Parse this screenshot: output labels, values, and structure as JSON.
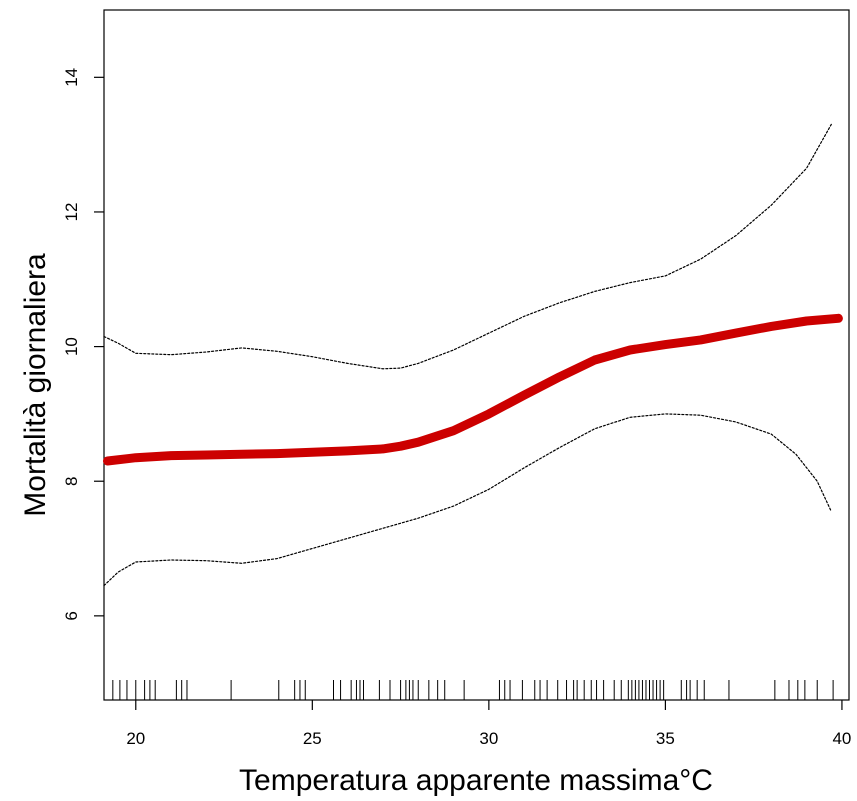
{
  "chart_data": {
    "type": "line",
    "title": "",
    "xlabel": "Temperatura apparente massima°C",
    "ylabel": "Mortalità giornaliera",
    "xlim": [
      19.1,
      40.2
    ],
    "ylim": [
      4.75,
      15.0
    ],
    "x_ticks": [
      "20",
      "25",
      "30",
      "35",
      "40"
    ],
    "y_ticks": [
      "6",
      "8",
      "10",
      "12",
      "14"
    ],
    "grid": false,
    "legend": "none",
    "colors": {
      "fit": "#cc0000",
      "band": "#000000",
      "rug": "#000000"
    },
    "series": [
      {
        "role": "fit",
        "x": [
          19.2,
          20,
          21,
          22,
          23,
          24,
          25,
          26,
          27,
          27.5,
          28,
          29,
          30,
          31,
          32,
          33,
          34,
          35,
          36,
          37,
          38,
          39,
          39.9
        ],
        "y": [
          8.3,
          8.35,
          8.38,
          8.39,
          8.4,
          8.41,
          8.43,
          8.45,
          8.48,
          8.52,
          8.58,
          8.75,
          9.0,
          9.28,
          9.55,
          9.8,
          9.95,
          10.03,
          10.1,
          10.2,
          10.3,
          10.38,
          10.42
        ]
      },
      {
        "role": "upper",
        "x": [
          19.1,
          19.5,
          20,
          21,
          22,
          23,
          24,
          25,
          26,
          27,
          27.5,
          28,
          29,
          30,
          31,
          32,
          33,
          34,
          35,
          36,
          37,
          38,
          39,
          39.7
        ],
        "y": [
          10.15,
          10.05,
          9.9,
          9.88,
          9.92,
          9.98,
          9.93,
          9.85,
          9.75,
          9.67,
          9.68,
          9.75,
          9.95,
          10.2,
          10.45,
          10.65,
          10.82,
          10.95,
          11.05,
          11.3,
          11.65,
          12.1,
          12.65,
          13.3
        ]
      },
      {
        "role": "lower",
        "x": [
          19.1,
          19.5,
          20,
          21,
          22,
          23,
          24,
          25,
          26,
          27,
          28,
          29,
          30,
          31,
          32,
          33,
          34,
          35,
          36,
          37,
          38,
          38.7,
          39.3,
          39.7
        ],
        "y": [
          6.45,
          6.65,
          6.8,
          6.83,
          6.82,
          6.78,
          6.85,
          7.0,
          7.15,
          7.3,
          7.45,
          7.63,
          7.88,
          8.2,
          8.5,
          8.78,
          8.95,
          9.0,
          8.98,
          8.88,
          8.7,
          8.4,
          8.0,
          7.55
        ]
      }
    ],
    "rug_x": [
      19.35,
      19.55,
      19.75,
      20.0,
      20.25,
      20.4,
      20.55,
      21.15,
      21.3,
      21.45,
      22.7,
      24.05,
      24.5,
      24.65,
      24.8,
      25.6,
      25.8,
      26.1,
      26.25,
      26.35,
      26.45,
      26.9,
      27.2,
      27.5,
      27.65,
      27.75,
      27.85,
      28.0,
      28.3,
      28.55,
      28.75,
      29.3,
      30.3,
      30.45,
      30.6,
      30.95,
      31.3,
      31.45,
      31.65,
      31.95,
      32.2,
      32.4,
      32.5,
      32.7,
      32.9,
      33.05,
      33.25,
      33.55,
      33.75,
      33.95,
      34.05,
      34.15,
      34.25,
      34.35,
      34.45,
      34.55,
      34.65,
      34.75,
      34.85,
      34.95,
      35.45,
      35.6,
      35.7,
      35.9,
      36.1,
      36.8,
      38.1,
      38.5,
      38.75,
      38.95,
      39.3,
      39.75
    ]
  }
}
